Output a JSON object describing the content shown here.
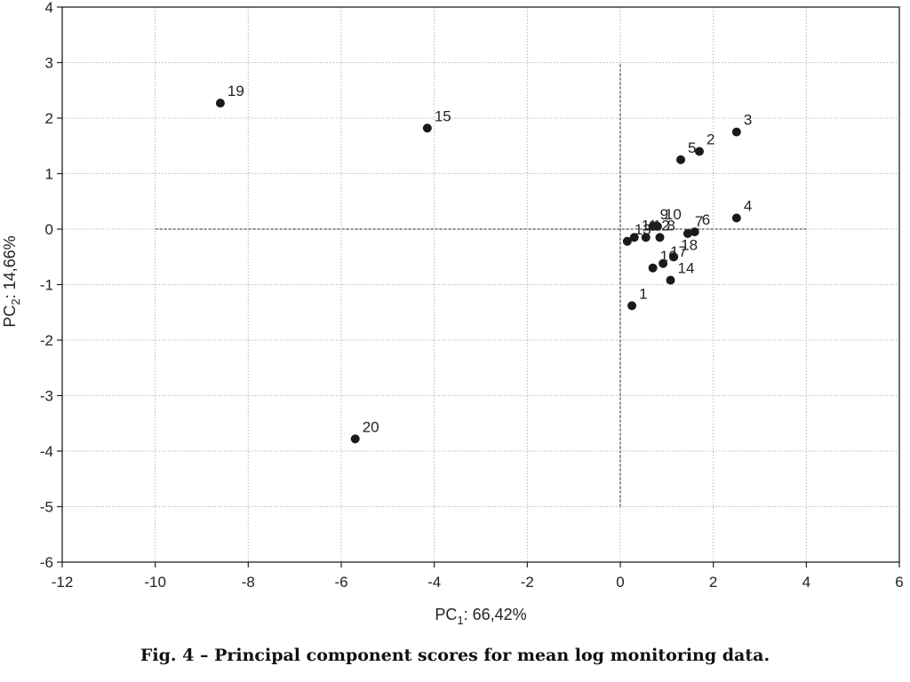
{
  "caption": "Fig. 4 – Principal component scores for mean log monitoring data.",
  "chart_data": {
    "type": "scatter",
    "title": "",
    "xlabel": {
      "prefix": "PC",
      "sub": "1",
      "suffix": ": 66,42%"
    },
    "ylabel": {
      "prefix": "PC",
      "sub": "2",
      "suffix": ": 14,66%"
    },
    "xlim": [
      -12,
      6
    ],
    "ylim": [
      -6,
      4
    ],
    "xticks": [
      "-12",
      "-10",
      "-8",
      "-6",
      "-4",
      "-2",
      "0",
      "2",
      "4",
      "6"
    ],
    "yticks": [
      "4",
      "3",
      "2",
      "1",
      "0",
      "-1",
      "-2",
      "-3",
      "-4",
      "-5",
      "-6"
    ],
    "grid": true,
    "reference_lines": [
      {
        "orientation": "horizontal",
        "y": 0,
        "x_range": [
          -10,
          4
        ],
        "style": "dashed"
      },
      {
        "orientation": "vertical",
        "x": 0,
        "y_range": [
          -5,
          3
        ],
        "style": "dashed"
      }
    ],
    "points": [
      {
        "label": "1",
        "x": 0.25,
        "y": -1.38
      },
      {
        "label": "2",
        "x": 1.7,
        "y": 1.4
      },
      {
        "label": "3",
        "x": 2.5,
        "y": 1.75
      },
      {
        "label": "4",
        "x": 2.5,
        "y": 0.2
      },
      {
        "label": "5",
        "x": 1.3,
        "y": 1.25
      },
      {
        "label": "6",
        "x": 1.6,
        "y": -0.05
      },
      {
        "label": "7",
        "x": 1.45,
        "y": -0.08
      },
      {
        "label": "8",
        "x": 0.85,
        "y": -0.15
      },
      {
        "label": "9",
        "x": 0.7,
        "y": 0.05
      },
      {
        "label": "10",
        "x": 0.8,
        "y": 0.05
      },
      {
        "label": "11",
        "x": 0.3,
        "y": -0.15
      },
      {
        "label": "12",
        "x": 0.55,
        "y": -0.15
      },
      {
        "label": "13",
        "x": 0.15,
        "y": -0.22
      },
      {
        "label": "14",
        "x": 1.08,
        "y": -0.92
      },
      {
        "label": "15",
        "x": -4.15,
        "y": 1.82
      },
      {
        "label": "16",
        "x": 0.7,
        "y": -0.7
      },
      {
        "label": "17",
        "x": 0.92,
        "y": -0.62
      },
      {
        "label": "18",
        "x": 1.15,
        "y": -0.5
      },
      {
        "label": "19",
        "x": -8.6,
        "y": 2.27
      },
      {
        "label": "20",
        "x": -5.7,
        "y": -3.78
      }
    ]
  }
}
